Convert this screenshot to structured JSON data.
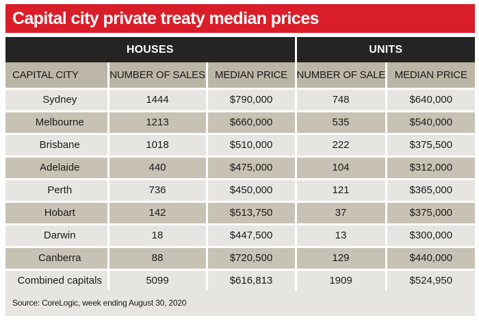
{
  "title": "Capital city private treaty median prices",
  "colors": {
    "title_bg": "#d91e2a",
    "group_header_bg": "#242424",
    "column_header_bg": "#bcb6a7",
    "row_light": "#e7e5e1",
    "row_dark": "#c7c2b4"
  },
  "chart_data": {
    "type": "table",
    "title": "Capital city private treaty median prices",
    "column_groups": [
      {
        "label": "HOUSES",
        "columns": [
          "NUMBER OF SALES",
          "MEDIAN PRICE"
        ]
      },
      {
        "label": "UNITS",
        "columns": [
          "NUMBER OF SALES",
          "MEDIAN PRICE"
        ]
      }
    ],
    "row_header": "CAPITAL CITY",
    "columns": [
      "CAPITAL CITY",
      "NUMBER OF SALES",
      "MEDIAN PRICE",
      "NUMBER OF SALES",
      "MEDIAN PRICE"
    ],
    "rows": [
      {
        "city": "Sydney",
        "houses_sales": "1444",
        "houses_median": "$790,000",
        "units_sales": "748",
        "units_median": "$640,000"
      },
      {
        "city": "Melbourne",
        "houses_sales": "1213",
        "houses_median": "$660,000",
        "units_sales": "535",
        "units_median": "$540,000"
      },
      {
        "city": "Brisbane",
        "houses_sales": "1018",
        "houses_median": "$510,000",
        "units_sales": "222",
        "units_median": "$375,500"
      },
      {
        "city": "Adelaide",
        "houses_sales": "440",
        "houses_median": "$475,000",
        "units_sales": "104",
        "units_median": "$312,000"
      },
      {
        "city": "Perth",
        "houses_sales": "736",
        "houses_median": "$450,000",
        "units_sales": "121",
        "units_median": "$365,000"
      },
      {
        "city": "Hobart",
        "houses_sales": "142",
        "houses_median": "$513,750",
        "units_sales": "37",
        "units_median": "$375,000"
      },
      {
        "city": "Darwin",
        "houses_sales": "18",
        "houses_median": "$447,500",
        "units_sales": "13",
        "units_median": "$300,000"
      },
      {
        "city": "Canberra",
        "houses_sales": "88",
        "houses_median": "$720,500",
        "units_sales": "129",
        "units_median": "$440,000"
      },
      {
        "city": "Combined capitals",
        "houses_sales": "5099",
        "houses_median": "$616,813",
        "units_sales": "1909",
        "units_median": "$524,950"
      }
    ],
    "source": "Source: CoreLogic, week ending August 30, 2020"
  }
}
